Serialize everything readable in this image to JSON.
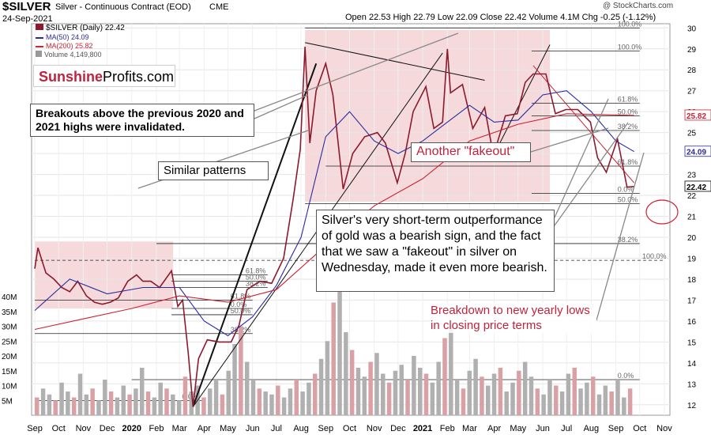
{
  "header": {
    "symbol": "$SILVER",
    "description": "Silver - Continuous Contract (EOD)",
    "exchange": "CME",
    "date": "24-Sep-2021",
    "ohlc": "Open 22.53  High 22.79  Low 22.09  Close 22.42  Volume 4.1M  Chg -0.25 (-1.12%)",
    "watermark": "@ StockCharts.com"
  },
  "legend": {
    "price": "$SILVER (Daily) 22.42",
    "ma50": "MA(50) 24.09",
    "ma200": "MA(200) 25.82",
    "volume": "Volume 4,149,800"
  },
  "logo": {
    "part1": "Sunshine",
    "part2": "Profits.com"
  },
  "annotations": {
    "breakouts": "Breakouts above the previous 2020 and 2021 highs were invalidated.",
    "similar": "Similar patterns",
    "fakeout": "Another \"fakeout\"",
    "main": "Silver's very short-term outperformance of gold was a bearish sign, and the fact that we saw a \"fakeout\" in silver on Wednesday, made it even more bearish.",
    "breakdown": "Breakdown to new yearly lows in closing price terms"
  },
  "colors": {
    "price": "#8b1a2e",
    "ma50": "#2b2b9e",
    "ma200": "#cc2233",
    "volume": "#b0b0b0",
    "box_fill": "#f2c9cc",
    "annotation_red": "#c0233b"
  },
  "chart_data": {
    "type": "line",
    "title": "$SILVER Silver - Continuous Contract (EOD) CME",
    "y_axis_price": {
      "ticks": [
        12,
        13,
        14,
        15,
        16,
        17,
        18,
        19,
        20,
        21,
        22,
        23,
        24,
        25,
        26,
        27,
        28,
        29,
        30
      ],
      "ylim": [
        11.5,
        30.2
      ]
    },
    "y_axis_volume": {
      "ticks": [
        "5M",
        "10M",
        "15M",
        "20M",
        "25M",
        "30M",
        "35M",
        "40M"
      ],
      "ylim": [
        0,
        44
      ]
    },
    "x_tick_labels": [
      "Sep",
      "Oct",
      "Nov",
      "Dec",
      "2020",
      "Feb",
      "Mar",
      "Apr",
      "May",
      "Jun",
      "Jul",
      "Aug",
      "Sep",
      "Oct",
      "Nov",
      "Dec",
      "2021",
      "Feb",
      "Mar",
      "Apr",
      "May",
      "Jun",
      "Jul",
      "Aug",
      "Sep",
      "Oct",
      "Nov"
    ],
    "right_labels": [
      {
        "text": "22.42",
        "value": 22.42
      },
      {
        "text": "24.09",
        "value": 24.09
      },
      {
        "text": "25.82",
        "value": 25.82
      }
    ],
    "series": [
      {
        "name": "$SILVER (Daily)",
        "points": [
          [
            "2019-09-01",
            18.5
          ],
          [
            "2019-09-05",
            19.5
          ],
          [
            "2019-09-15",
            18.3
          ],
          [
            "2019-09-25",
            18.0
          ],
          [
            "2019-10-05",
            17.6
          ],
          [
            "2019-10-15",
            17.4
          ],
          [
            "2019-10-25",
            17.9
          ],
          [
            "2019-11-05",
            17.2
          ],
          [
            "2019-11-15",
            16.9
          ],
          [
            "2019-11-25",
            16.8
          ],
          [
            "2019-12-05",
            16.9
          ],
          [
            "2019-12-15",
            17.1
          ],
          [
            "2019-12-27",
            17.9
          ],
          [
            "2020-01-07",
            18.2
          ],
          [
            "2020-01-15",
            17.9
          ],
          [
            "2020-01-25",
            17.9
          ],
          [
            "2020-02-05",
            17.6
          ],
          [
            "2020-02-20",
            18.4
          ],
          [
            "2020-02-28",
            16.7
          ],
          [
            "2020-03-05",
            17.0
          ],
          [
            "2020-03-12",
            14.5
          ],
          [
            "2020-03-18",
            11.9
          ],
          [
            "2020-03-25",
            14.2
          ],
          [
            "2020-04-05",
            15.1
          ],
          [
            "2020-04-20",
            15.0
          ],
          [
            "2020-05-05",
            15.0
          ],
          [
            "2020-05-15",
            15.8
          ],
          [
            "2020-05-25",
            17.5
          ],
          [
            "2020-06-10",
            17.9
          ],
          [
            "2020-06-25",
            17.8
          ],
          [
            "2020-07-10",
            19.0
          ],
          [
            "2020-07-22",
            21.8
          ],
          [
            "2020-07-31",
            24.2
          ],
          [
            "2020-08-06",
            29.1
          ],
          [
            "2020-08-12",
            24.5
          ],
          [
            "2020-08-20",
            27.0
          ],
          [
            "2020-09-01",
            28.3
          ],
          [
            "2020-09-10",
            26.8
          ],
          [
            "2020-09-23",
            22.3
          ],
          [
            "2020-10-05",
            24.0
          ],
          [
            "2020-10-20",
            24.8
          ],
          [
            "2020-11-05",
            25.0
          ],
          [
            "2020-11-15",
            24.5
          ],
          [
            "2020-11-30",
            22.6
          ],
          [
            "2020-12-10",
            24.0
          ],
          [
            "2020-12-20",
            26.0
          ],
          [
            "2021-01-05",
            27.2
          ],
          [
            "2021-01-15",
            25.2
          ],
          [
            "2021-01-26",
            25.5
          ],
          [
            "2021-02-01",
            29.0
          ],
          [
            "2021-02-05",
            26.9
          ],
          [
            "2021-02-20",
            27.3
          ],
          [
            "2021-03-05",
            25.2
          ],
          [
            "2021-03-20",
            26.2
          ],
          [
            "2021-03-31",
            23.9
          ],
          [
            "2021-04-15",
            25.8
          ],
          [
            "2021-04-30",
            25.9
          ],
          [
            "2021-05-10",
            27.4
          ],
          [
            "2021-05-20",
            27.8
          ],
          [
            "2021-06-05",
            27.8
          ],
          [
            "2021-06-17",
            25.9
          ],
          [
            "2021-06-30",
            26.1
          ],
          [
            "2021-07-15",
            26.1
          ],
          [
            "2021-07-31",
            25.5
          ],
          [
            "2021-08-09",
            23.8
          ],
          [
            "2021-08-20",
            23.1
          ],
          [
            "2021-09-03",
            24.7
          ],
          [
            "2021-09-15",
            22.4
          ],
          [
            "2021-09-24",
            22.42
          ]
        ]
      },
      {
        "name": "MA(50)",
        "points": [
          [
            "2019-09-01",
            16.5
          ],
          [
            "2019-10-15",
            18.0
          ],
          [
            "2019-12-01",
            17.3
          ],
          [
            "2020-01-15",
            17.6
          ],
          [
            "2020-03-01",
            17.6
          ],
          [
            "2020-04-01",
            16.0
          ],
          [
            "2020-05-01",
            15.3
          ],
          [
            "2020-06-01",
            16.2
          ],
          [
            "2020-07-01",
            17.7
          ],
          [
            "2020-08-01",
            20.0
          ],
          [
            "2020-09-01",
            24.8
          ],
          [
            "2020-10-01",
            26.0
          ],
          [
            "2020-11-01",
            24.6
          ],
          [
            "2020-12-01",
            24.0
          ],
          [
            "2021-01-01",
            24.6
          ],
          [
            "2021-02-01",
            25.5
          ],
          [
            "2021-03-01",
            26.3
          ],
          [
            "2021-04-01",
            25.5
          ],
          [
            "2021-05-01",
            25.6
          ],
          [
            "2021-06-01",
            26.8
          ],
          [
            "2021-07-01",
            27.0
          ],
          [
            "2021-08-01",
            26.0
          ],
          [
            "2021-09-01",
            24.6
          ],
          [
            "2021-09-24",
            24.09
          ]
        ]
      },
      {
        "name": "MA(200)",
        "points": [
          [
            "2019-09-01",
            15.6
          ],
          [
            "2019-11-01",
            16.1
          ],
          [
            "2020-01-01",
            16.6
          ],
          [
            "2020-03-01",
            17.2
          ],
          [
            "2020-05-01",
            16.9
          ],
          [
            "2020-07-01",
            17.5
          ],
          [
            "2020-09-01",
            19.6
          ],
          [
            "2020-11-01",
            21.5
          ],
          [
            "2021-01-01",
            22.8
          ],
          [
            "2021-03-01",
            24.6
          ],
          [
            "2021-05-01",
            25.4
          ],
          [
            "2021-07-01",
            25.9
          ],
          [
            "2021-09-24",
            25.82
          ]
        ]
      }
    ],
    "volume_bars": [
      6,
      9,
      7,
      5,
      11,
      8,
      6,
      14,
      7,
      9,
      5,
      12,
      8,
      6,
      10,
      7,
      9,
      16,
      8,
      6,
      11,
      9,
      7,
      5,
      13,
      8,
      10,
      6,
      9,
      12,
      7,
      15,
      24,
      30,
      18,
      12,
      9,
      8,
      7,
      10,
      6,
      9,
      12,
      8,
      11,
      14,
      19,
      25,
      38,
      42,
      28,
      22,
      16,
      13,
      18,
      21,
      14,
      11,
      15,
      17,
      12,
      20,
      16,
      14,
      11,
      18,
      26,
      30,
      12,
      9,
      15,
      19,
      13,
      10,
      14,
      16,
      8,
      11,
      15,
      18,
      13,
      9,
      7,
      12,
      10,
      8,
      14,
      16,
      9,
      11,
      13,
      7,
      10,
      8,
      12,
      6,
      9
    ],
    "fib_levels": [
      {
        "label": "100.0%",
        "value": 30.0
      },
      {
        "label": "100.0%",
        "value": 28.9
      },
      {
        "label": "61.8%",
        "value": 26.4
      },
      {
        "label": "50.0%",
        "value": 25.8
      },
      {
        "label": "38.2%",
        "value": 25.1
      },
      {
        "label": "61.8%",
        "value": 23.4
      },
      {
        "label": "0.0%",
        "value": 22.1
      },
      {
        "label": "50.0%",
        "value": 21.6
      },
      {
        "label": "38.2%",
        "value": 19.7
      },
      {
        "label": "100.0%",
        "value": 19.7
      },
      {
        "label": "100.0%",
        "value": 18.9
      },
      {
        "label": "61.8%",
        "value": 18.2
      },
      {
        "label": "50.0%",
        "value": 17.9
      },
      {
        "label": "38.2%",
        "value": 17.6
      },
      {
        "label": "61.8%",
        "value": 17.0
      },
      {
        "label": "0.0%",
        "value": 16.6
      },
      {
        "label": "50.0%",
        "value": 16.3
      },
      {
        "label": "38.2%",
        "value": 15.4
      },
      {
        "label": "0.0%",
        "value": 13.2
      },
      {
        "label": "0.0%",
        "value": 12.2
      }
    ],
    "grid": true
  }
}
